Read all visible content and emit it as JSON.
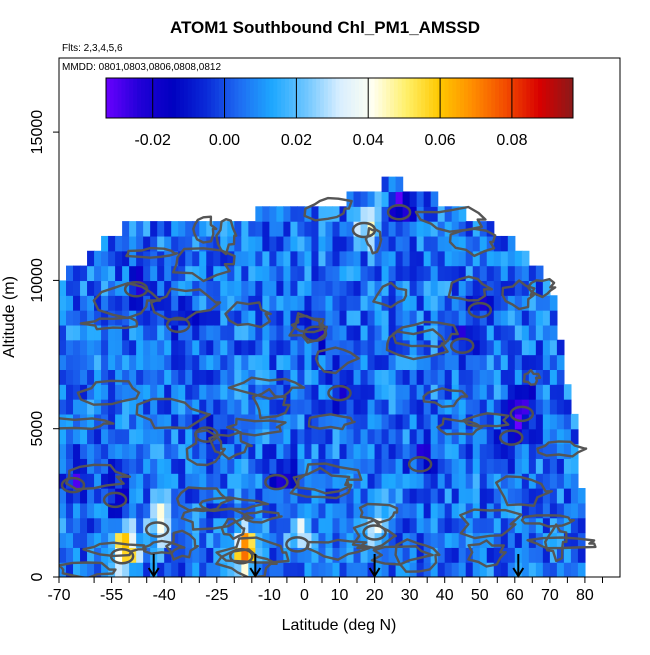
{
  "chart_data": {
    "type": "heatmap",
    "title": "ATOM1 Southbound Chl_PM1_AMSSD",
    "subtitle_flights": "Flts: 2,3,4,5,6",
    "subtitle_dates": "MMDD: 0801,0803,0806,0808,0812",
    "xlabel": "Latitude (deg N)",
    "ylabel": "Altitude (m)",
    "xlim": [
      -70,
      90
    ],
    "ylim": [
      0,
      17500
    ],
    "x_ticks": [
      "-70",
      "-55",
      "-40",
      "-25",
      "-10",
      "0",
      "10",
      "20",
      "30",
      "40",
      "50",
      "60",
      "70",
      "80"
    ],
    "x_tick_values": [
      -70,
      -55,
      -40,
      -25,
      -10,
      0,
      10,
      20,
      30,
      40,
      50,
      60,
      70,
      80
    ],
    "x_minor_ticks": [
      -60,
      -50,
      -45,
      -35,
      -30,
      -20,
      -15,
      -5,
      5,
      15,
      25,
      35,
      45,
      55,
      65,
      75,
      85
    ],
    "y_ticks": [
      "0",
      "5000",
      "10000",
      "15000"
    ],
    "y_tick_values": [
      0,
      5000,
      10000,
      15000
    ],
    "colorbar": {
      "range": [
        -0.033,
        0.097
      ],
      "tick_labels": [
        "-0.02",
        "0.00",
        "0.02",
        "0.04",
        "0.06",
        "0.08"
      ],
      "tick_values": [
        -0.02,
        0.0,
        0.02,
        0.04,
        0.06,
        0.08
      ],
      "colors": [
        "#6a00ff",
        "#2200d8",
        "#0000c0",
        "#0a2ad8",
        "#1e6cf2",
        "#1ea8ff",
        "#6fc6ff",
        "#d8eeff",
        "#fffff0",
        "#fff06a",
        "#ffc800",
        "#ff8c00",
        "#f24a00",
        "#d80000",
        "#8a1a1a"
      ]
    },
    "altitude_envelope": [
      {
        "lat": -70,
        "max_alt": 10000
      },
      {
        "lat": -64,
        "max_alt": 10600
      },
      {
        "lat": -58,
        "max_alt": 11200
      },
      {
        "lat": -52,
        "max_alt": 11800
      },
      {
        "lat": -40,
        "max_alt": 11800
      },
      {
        "lat": -30,
        "max_alt": 12000
      },
      {
        "lat": -20,
        "max_alt": 12000
      },
      {
        "lat": -10,
        "max_alt": 12400
      },
      {
        "lat": 0,
        "max_alt": 12700
      },
      {
        "lat": 10,
        "max_alt": 12700
      },
      {
        "lat": 20,
        "max_alt": 13000
      },
      {
        "lat": 24,
        "max_alt": 13500
      },
      {
        "lat": 30,
        "max_alt": 13000
      },
      {
        "lat": 40,
        "max_alt": 12700
      },
      {
        "lat": 50,
        "max_alt": 12000
      },
      {
        "lat": 60,
        "max_alt": 11200
      },
      {
        "lat": 66,
        "max_alt": 10600
      },
      {
        "lat": 70,
        "max_alt": 10000
      },
      {
        "lat": 74,
        "max_alt": 7000
      },
      {
        "lat": 78,
        "max_alt": 5000
      },
      {
        "lat": 80,
        "max_alt": 1000
      }
    ],
    "background_value": 0.005,
    "features": [
      {
        "lat": -52,
        "alt": 700,
        "value": 0.065
      },
      {
        "lat": -18,
        "alt": 700,
        "value": 0.075
      },
      {
        "lat": -42,
        "alt": 1600,
        "value": 0.04
      },
      {
        "lat": 17,
        "alt": 11700,
        "value": 0.04
      },
      {
        "lat": -2,
        "alt": 1100,
        "value": 0.035
      },
      {
        "lat": 20,
        "alt": 1500,
        "value": 0.03
      },
      {
        "lat": 59,
        "alt": 4700,
        "value": -0.025
      },
      {
        "lat": 62,
        "alt": 5500,
        "value": -0.02
      },
      {
        "lat": -66,
        "alt": 3100,
        "value": -0.02
      },
      {
        "lat": -54,
        "alt": 2600,
        "value": -0.02
      },
      {
        "lat": 10,
        "alt": 6200,
        "value": -0.02
      },
      {
        "lat": 27,
        "alt": 12300,
        "value": -0.025
      },
      {
        "lat": 45,
        "alt": 7800,
        "value": -0.02
      },
      {
        "lat": -36,
        "alt": 8500,
        "value": -0.015
      },
      {
        "lat": -48,
        "alt": 9700,
        "value": -0.015
      },
      {
        "lat": -8,
        "alt": 3200,
        "value": -0.015
      },
      {
        "lat": 33,
        "alt": 3800,
        "value": -0.015
      },
      {
        "lat": -28,
        "alt": 4800,
        "value": -0.015
      },
      {
        "lat": 50,
        "alt": 9000,
        "value": -0.015
      },
      {
        "lat": 3,
        "alt": 8200,
        "value": -0.015
      }
    ],
    "arrows_lat": [
      -43,
      -14,
      20,
      61
    ]
  }
}
